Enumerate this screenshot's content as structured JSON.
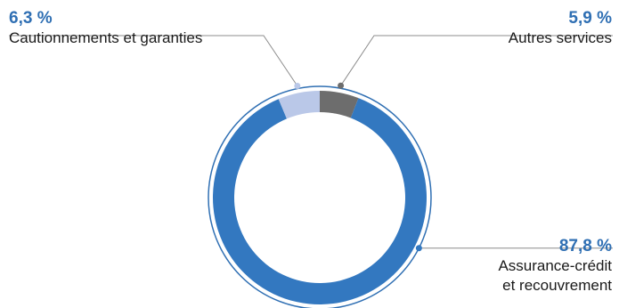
{
  "chart_data": {
    "type": "pie",
    "style": "donut",
    "series": [
      {
        "name": "Assurance-crédit et recouvrement",
        "value_label": "87,8 %",
        "value": 87.8,
        "color": "#3378c0"
      },
      {
        "name": "Cautionnements et garanties",
        "value_label": "6,3 %",
        "value": 6.3,
        "color": "#bac8e8"
      },
      {
        "name": "Autres services",
        "value_label": "5,9 %",
        "value": 5.9,
        "color": "#6d6d6d"
      }
    ],
    "legend": "none",
    "labels": {
      "credit": {
        "percent": "87,8 %",
        "line1": "Assurance-crédit",
        "line2": "et recouvrement"
      },
      "cautions": {
        "percent": "6,3 %",
        "line1": "Cautionnements et garanties"
      },
      "autres": {
        "percent": "5,9 %",
        "line1": "Autres services"
      }
    },
    "colors": {
      "label_percent": "#2f6fb3",
      "leader_line": "#8c8c8c",
      "outer_ring": "#2f6fb3"
    }
  }
}
